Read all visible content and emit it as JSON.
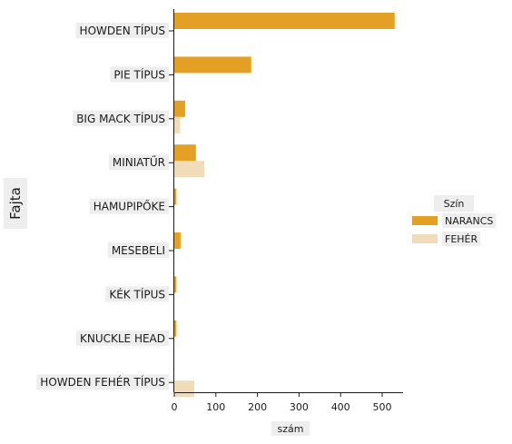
{
  "chart_data": {
    "type": "bar",
    "orientation": "horizontal",
    "categories": [
      "HOWDEN TÍPUS",
      "PIE TÍPUS",
      "BIG MACK TÍPUS",
      "MINIATŰR",
      "HAMUPIPŐKE",
      "MESEBELI",
      "KÉK TÍPUS",
      "KNUCKLE HEAD",
      "HOWDEN FEHÉR TÍPUS"
    ],
    "series": [
      {
        "name": "NARANCS",
        "color": "#e3a024",
        "values": [
          530,
          185,
          26,
          52,
          5,
          15,
          5,
          5,
          0
        ]
      },
      {
        "name": "FEHÉR",
        "color": "#f0dcb8",
        "values": [
          0,
          0,
          14,
          72,
          0,
          0,
          0,
          0,
          48
        ]
      }
    ],
    "xlabel": "szám",
    "ylabel": "Fajta",
    "xlim": [
      0,
      550
    ],
    "xticks": [
      0,
      100,
      200,
      300,
      400,
      500
    ],
    "legend_title": "Szín",
    "legend_position": "right",
    "grid": false
  }
}
